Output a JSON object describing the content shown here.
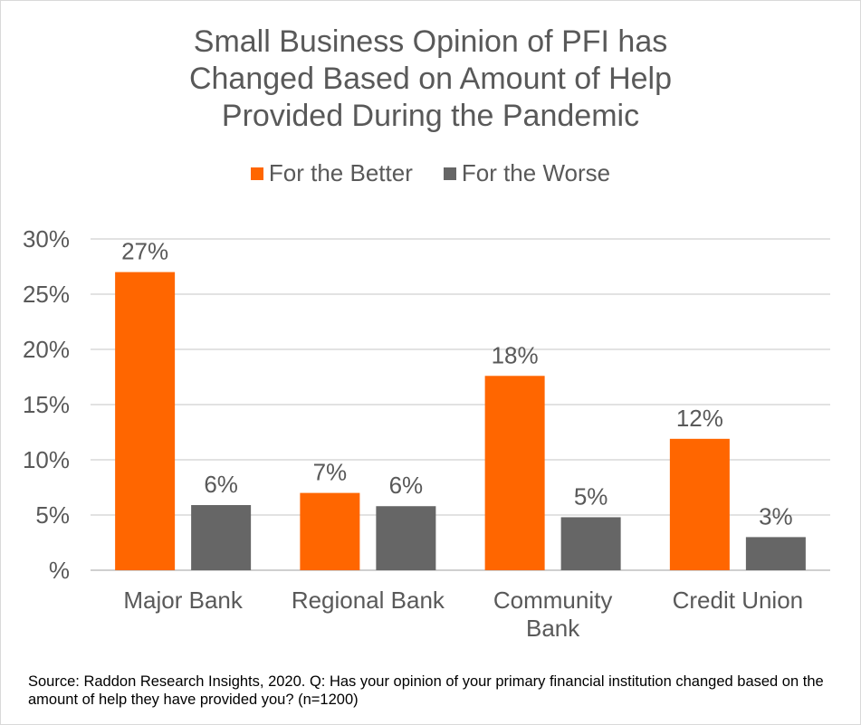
{
  "chart_data": {
    "type": "bar",
    "title_lines": [
      "Small Business Opinion of PFI has",
      "Changed Based on Amount of Help",
      "Provided During the Pandemic"
    ],
    "categories": [
      [
        "Major Bank"
      ],
      [
        "Regional Bank"
      ],
      [
        "Community",
        "Bank"
      ],
      [
        "Credit Union"
      ]
    ],
    "series": [
      {
        "name": "For the Better",
        "color": "#ff6600",
        "values": [
          27,
          7,
          17.6,
          11.9
        ],
        "labels": [
          "27%",
          "7%",
          "18%",
          "12%"
        ]
      },
      {
        "name": "For the Worse",
        "color": "#666666",
        "values": [
          5.9,
          5.8,
          4.8,
          3.0
        ],
        "labels": [
          "6%",
          "6%",
          "5%",
          "3%"
        ]
      }
    ],
    "y_ticks": [
      "%",
      "5%",
      "10%",
      "15%",
      "20%",
      "25%",
      "30%"
    ],
    "ylim": [
      0,
      30
    ],
    "grid": true,
    "legend_position": "top-center",
    "source": "Source: Raddon Research Insights, 2020. Q: Has your opinion of your primary financial institution changed based on the amount of help they have provided you? (n=1200)"
  }
}
